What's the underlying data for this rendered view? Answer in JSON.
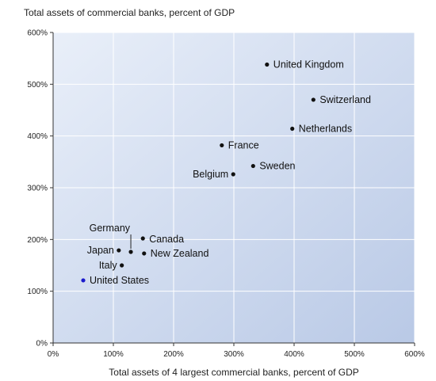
{
  "chart_data": {
    "type": "scatter",
    "ylabel": "Total assets of commercial banks, percent of GDP",
    "xlabel": "Total assets of 4 largest commercial banks, percent of GDP",
    "xlim": [
      0,
      600
    ],
    "ylim": [
      0,
      600
    ],
    "x_ticks": [
      "0%",
      "100%",
      "200%",
      "300%",
      "400%",
      "500%",
      "600%"
    ],
    "y_ticks": [
      "0%",
      "100%",
      "200%",
      "300%",
      "400%",
      "500%",
      "600%"
    ],
    "grid": true,
    "background_gradient": [
      "#e9eff9",
      "#b9c9e6"
    ],
    "highlight_color": "#1a1acc",
    "point_color": "#111111",
    "points": [
      {
        "label": "United Kingdom",
        "x": 355,
        "y": 538
      },
      {
        "label": "Switzerland",
        "x": 432,
        "y": 470
      },
      {
        "label": "Netherlands",
        "x": 397,
        "y": 414
      },
      {
        "label": "France",
        "x": 280,
        "y": 382
      },
      {
        "label": "Sweden",
        "x": 332,
        "y": 342
      },
      {
        "label": "Belgium",
        "x": 299,
        "y": 326
      },
      {
        "label": "Canada",
        "x": 149,
        "y": 202
      },
      {
        "label": "Germany",
        "x": 129,
        "y": 176
      },
      {
        "label": "Japan",
        "x": 109,
        "y": 179
      },
      {
        "label": "New Zealand",
        "x": 151,
        "y": 173
      },
      {
        "label": "Italy",
        "x": 114,
        "y": 150
      },
      {
        "label": "United States",
        "x": 50,
        "y": 121,
        "highlight": true
      }
    ]
  }
}
